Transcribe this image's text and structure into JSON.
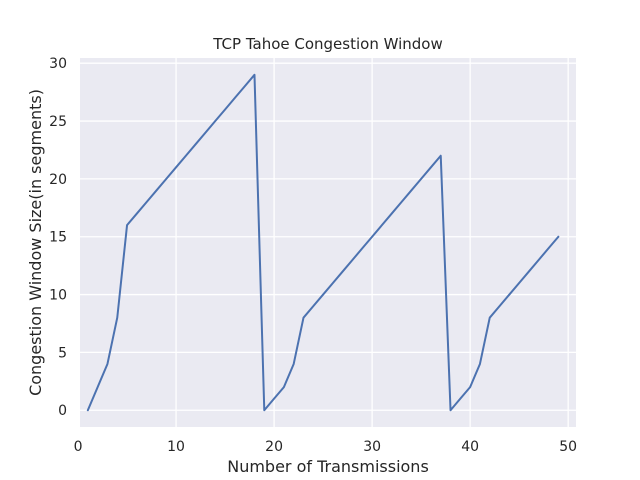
{
  "chart_data": {
    "type": "line",
    "title": "TCP Tahoe Congestion Window",
    "xlabel": "Number of Transmissions",
    "ylabel": "Congestion Window Size(in segments)",
    "xlim": [
      0.2,
      50.8
    ],
    "ylim": [
      -1.45,
      30.45
    ],
    "xticks": [
      0,
      10,
      20,
      30,
      40,
      50
    ],
    "yticks": [
      0,
      5,
      10,
      15,
      20,
      25,
      30
    ],
    "grid": true,
    "colors": {
      "background": "#eaeaf2",
      "grid": "#ffffff",
      "line": "#4c72b0"
    },
    "series": [
      {
        "x": [
          1,
          2,
          3,
          4,
          5,
          6,
          7,
          8,
          9,
          10,
          11,
          12,
          13,
          14,
          15,
          16,
          17,
          18,
          19,
          20,
          21,
          22,
          23,
          24,
          25,
          26,
          27,
          28,
          29,
          30,
          31,
          32,
          33,
          34,
          35,
          36,
          37,
          38,
          39,
          40,
          41,
          42,
          43,
          44,
          45,
          46,
          47,
          48,
          49
        ],
        "y": [
          0,
          2,
          4,
          8,
          16,
          17,
          18,
          19,
          20,
          21,
          22,
          23,
          24,
          25,
          26,
          27,
          28,
          29,
          0,
          1,
          2,
          4,
          8,
          9,
          10,
          11,
          12,
          13,
          14,
          15,
          16,
          17,
          18,
          19,
          20,
          21,
          22,
          0,
          1,
          2,
          4,
          8,
          9,
          10,
          11,
          12,
          13,
          14,
          15
        ]
      }
    ]
  }
}
